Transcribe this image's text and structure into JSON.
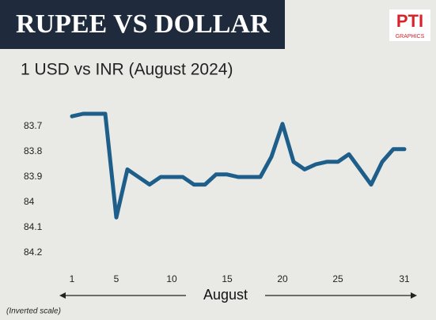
{
  "chart_data": {
    "type": "line",
    "title": "RUPEE VS DOLLAR",
    "subtitle": "1 USD vs INR (August 2024)",
    "logo": "PTI",
    "logo_sub": "GRAPHICS",
    "x": [
      1,
      2,
      3,
      4,
      5,
      6,
      7,
      8,
      9,
      10,
      11,
      12,
      13,
      14,
      15,
      16,
      17,
      18,
      19,
      20,
      21,
      22,
      23,
      24,
      25,
      26,
      27,
      28,
      29,
      30,
      31
    ],
    "values": [
      83.66,
      83.65,
      83.65,
      83.65,
      84.06,
      83.87,
      83.9,
      83.93,
      83.9,
      83.9,
      83.9,
      83.93,
      83.93,
      83.89,
      83.89,
      83.9,
      83.9,
      83.9,
      83.82,
      83.69,
      83.84,
      83.87,
      83.85,
      83.84,
      83.84,
      83.81,
      83.87,
      83.93,
      83.84,
      83.79,
      83.79
    ],
    "color": "#1d5f8a",
    "xlim": [
      0,
      32
    ],
    "xticks": [
      1,
      5,
      10,
      15,
      20,
      25,
      31
    ],
    "x_label": "August",
    "ylim": [
      83.6,
      84.25
    ],
    "yticks": [
      83.7,
      83.8,
      83.9,
      84,
      84.1,
      84.2
    ],
    "inverted_y": true,
    "note": "(Inverted scale)"
  }
}
